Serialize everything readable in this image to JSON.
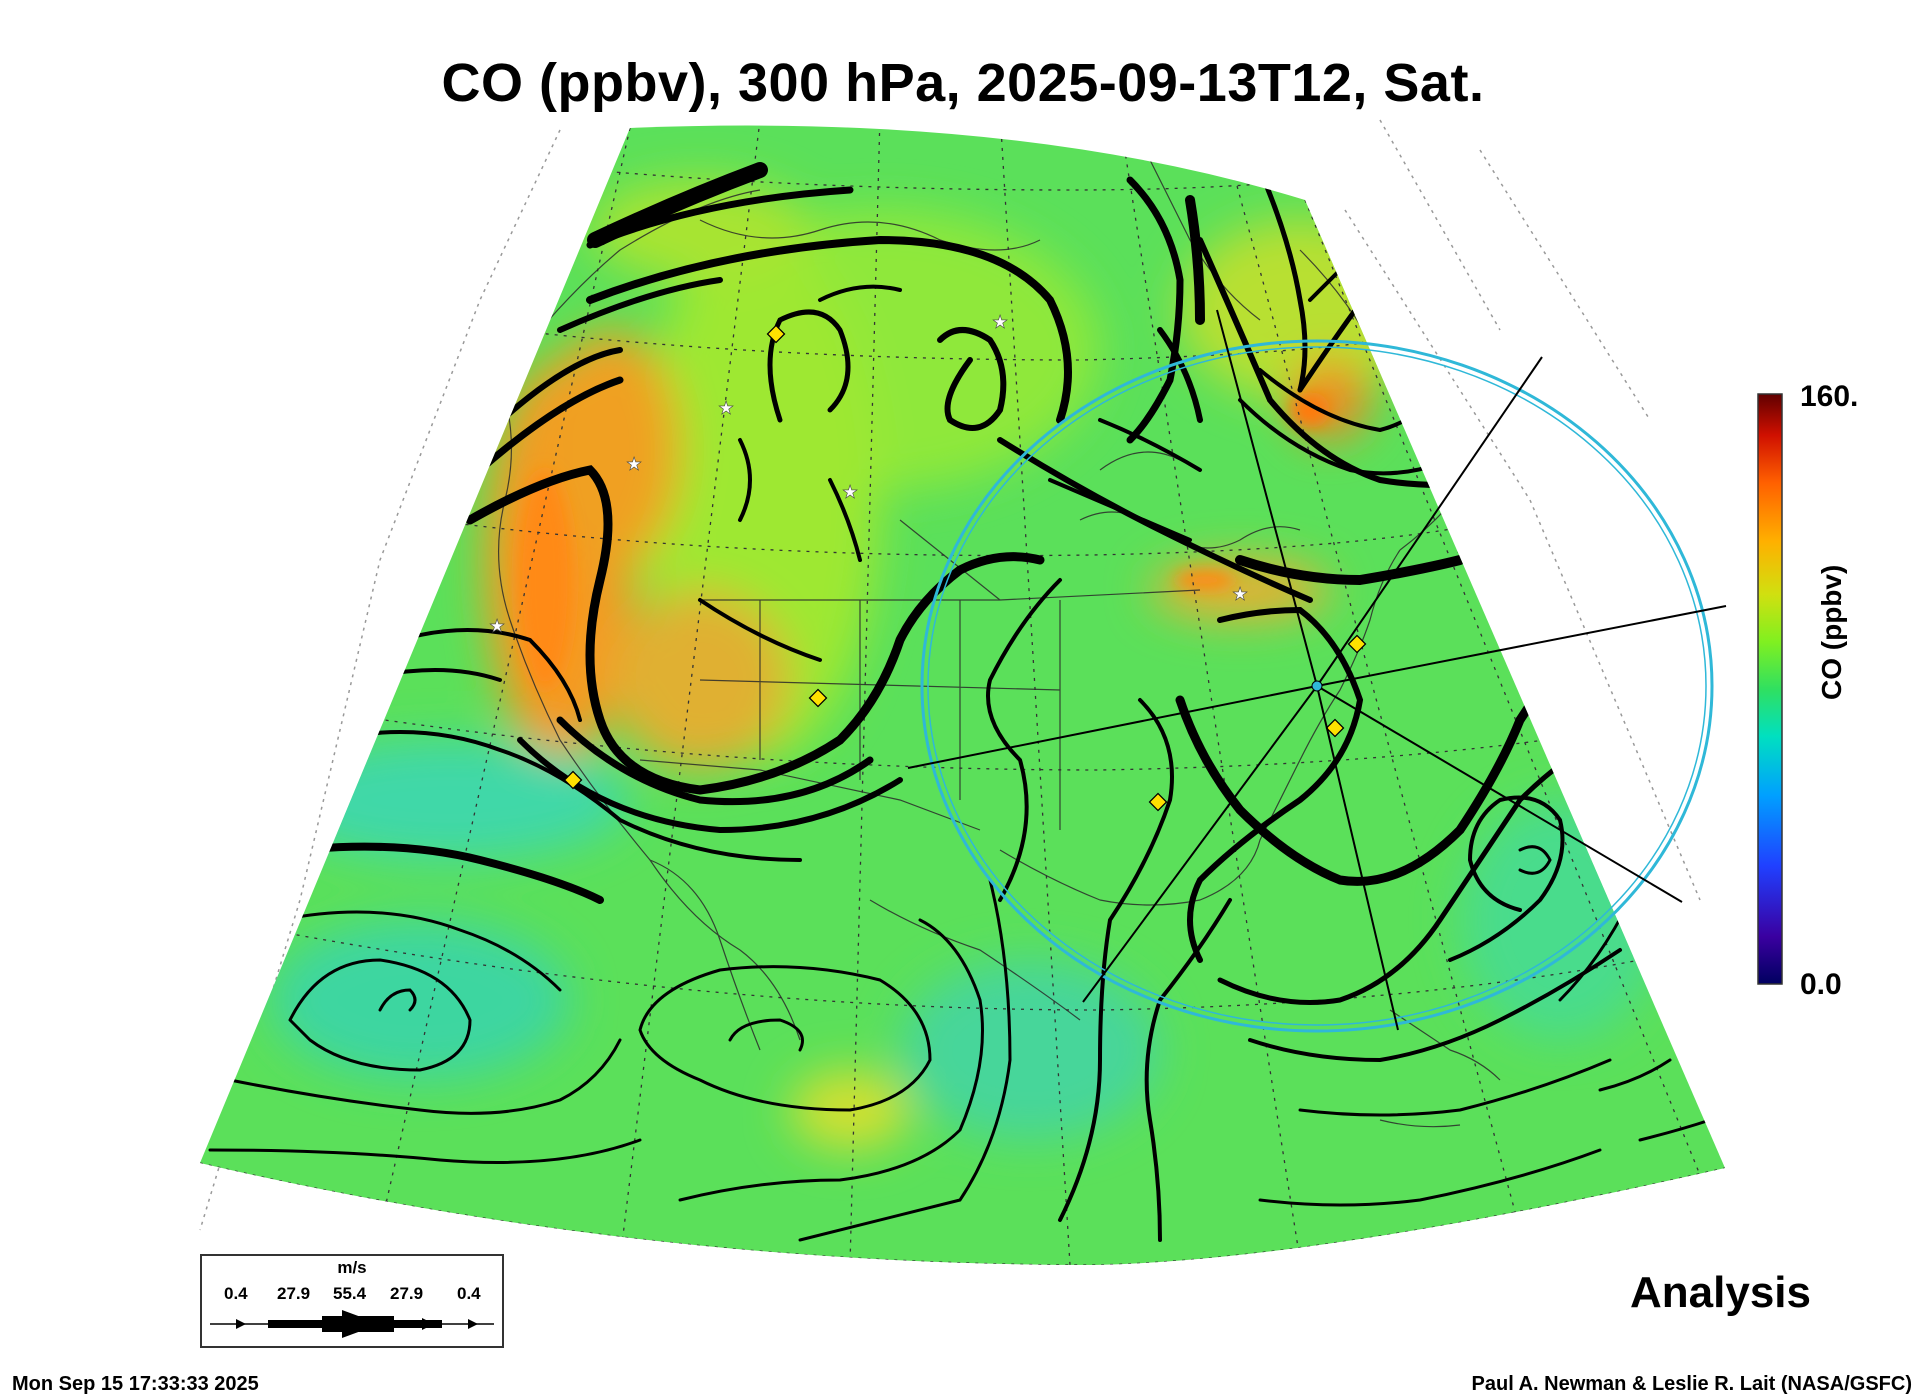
{
  "title": "CO (ppbv), 300 hPa, 2025-09-13T12, Sat.",
  "colorbar": {
    "max_label": "160.",
    "min_label": "0.0",
    "title": "CO (ppbv)",
    "stops": [
      "#000060",
      "#3a00a0",
      "#2040ff",
      "#00a0ff",
      "#00e0c0",
      "#30e060",
      "#80f020",
      "#d0e010",
      "#ffb000",
      "#ff6000",
      "#d01000",
      "#600000"
    ]
  },
  "wind_legend": {
    "unit": "m/s",
    "values": [
      "0.4",
      "27.9",
      "55.4",
      "27.9",
      "0.4"
    ]
  },
  "analysis_label": "Analysis",
  "footer": {
    "timestamp": "Mon Sep 15 17:33:33 2025",
    "credit": "Paul A. Newman & Leslie R. Lait (NASA/GSFC)"
  },
  "colors": {
    "background_field": "#5be05a",
    "high_co": "#ff9a1a",
    "low_co": "#3cd6a0",
    "circle": "#2fb8d8"
  }
}
